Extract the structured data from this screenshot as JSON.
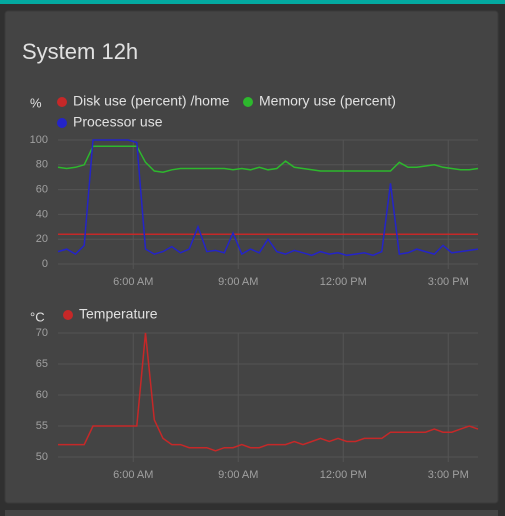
{
  "card": {
    "title": "System 12h"
  },
  "chart_data": [
    {
      "type": "line",
      "y_label": "%",
      "x": [
        3.85,
        4.1,
        4.35,
        4.6,
        4.85,
        5.1,
        5.35,
        5.6,
        5.85,
        6.1,
        6.35,
        6.6,
        6.85,
        7.1,
        7.35,
        7.6,
        7.85,
        8.1,
        8.35,
        8.6,
        8.85,
        9.1,
        9.35,
        9.6,
        9.85,
        10.1,
        10.35,
        10.6,
        10.85,
        11.1,
        11.35,
        11.6,
        11.85,
        12.1,
        12.35,
        12.6,
        12.85,
        13.1,
        13.35,
        13.6,
        13.85,
        14.1,
        14.35,
        14.6,
        14.85,
        15.1,
        15.35,
        15.6,
        15.85
      ],
      "xlim": [
        3.85,
        15.85
      ],
      "xticks": [
        {
          "value": 6,
          "label": "6:00 AM"
        },
        {
          "value": 9,
          "label": "9:00 AM"
        },
        {
          "value": 12,
          "label": "12:00 PM"
        },
        {
          "value": 15,
          "label": "3:00 PM"
        }
      ],
      "ylim": [
        0,
        100
      ],
      "yticks": [
        0,
        20,
        40,
        60,
        80,
        100
      ],
      "grid": true,
      "series": [
        {
          "name": "Disk use (percent) /home",
          "color": "#c62828",
          "values": [
            24,
            24,
            24,
            24,
            24,
            24,
            24,
            24,
            24,
            24,
            24,
            24,
            24,
            24,
            24,
            24,
            24,
            24,
            24,
            24,
            24,
            24,
            24,
            24,
            24,
            24,
            24,
            24,
            24,
            24,
            24,
            24,
            24,
            24,
            24,
            24,
            24,
            24,
            24,
            24,
            24,
            24,
            24,
            24,
            24,
            24,
            24,
            24,
            24
          ]
        },
        {
          "name": "Memory use (percent)",
          "color": "#2db82d",
          "values": [
            78,
            77,
            78,
            80,
            95,
            95,
            95,
            95,
            95,
            95,
            82,
            75,
            74,
            76,
            77,
            77,
            77,
            77,
            77,
            77,
            76,
            77,
            76,
            78,
            76,
            77,
            83,
            78,
            77,
            76,
            75,
            75,
            75,
            75,
            75,
            75,
            75,
            75,
            75,
            82,
            78,
            78,
            79,
            80,
            78,
            77,
            76,
            76,
            77
          ]
        },
        {
          "name": "Processor use",
          "color": "#2424c8",
          "values": [
            10,
            12,
            8,
            15,
            100,
            100,
            100,
            100,
            100,
            98,
            12,
            8,
            10,
            14,
            9,
            12,
            30,
            10,
            11,
            9,
            25,
            8,
            12,
            9,
            20,
            10,
            8,
            11,
            9,
            7,
            10,
            8,
            9,
            7,
            8,
            9,
            7,
            10,
            65,
            8,
            9,
            12,
            10,
            8,
            15,
            9,
            10,
            11,
            12
          ]
        }
      ]
    },
    {
      "type": "line",
      "y_label": "°C",
      "x": [
        3.85,
        4.1,
        4.35,
        4.6,
        4.85,
        5.1,
        5.35,
        5.6,
        5.85,
        6.1,
        6.35,
        6.6,
        6.85,
        7.1,
        7.35,
        7.6,
        7.85,
        8.1,
        8.35,
        8.6,
        8.85,
        9.1,
        9.35,
        9.6,
        9.85,
        10.1,
        10.35,
        10.6,
        10.85,
        11.1,
        11.35,
        11.6,
        11.85,
        12.1,
        12.35,
        12.6,
        12.85,
        13.1,
        13.35,
        13.6,
        13.85,
        14.1,
        14.35,
        14.6,
        14.85,
        15.1,
        15.35,
        15.6,
        15.85
      ],
      "xlim": [
        3.85,
        15.85
      ],
      "xticks": [
        {
          "value": 6,
          "label": "6:00 AM"
        },
        {
          "value": 9,
          "label": "9:00 AM"
        },
        {
          "value": 12,
          "label": "12:00 PM"
        },
        {
          "value": 15,
          "label": "3:00 PM"
        }
      ],
      "ylim": [
        50,
        70
      ],
      "yticks": [
        50,
        55,
        60,
        65,
        70
      ],
      "grid": true,
      "series": [
        {
          "name": "Temperature",
          "color": "#c62828",
          "values": [
            52,
            52,
            52,
            52,
            55,
            55,
            55,
            55,
            55,
            55,
            70,
            56,
            53,
            52,
            52,
            51.5,
            51.5,
            51.5,
            51,
            51.5,
            51.5,
            52,
            51.5,
            51.5,
            52,
            52,
            52,
            52.5,
            52,
            52.5,
            53,
            52.5,
            53,
            52.5,
            52.5,
            53,
            53,
            53,
            54,
            54,
            54,
            54,
            54,
            54.5,
            54,
            54,
            54.5,
            55,
            54.5
          ]
        }
      ]
    }
  ]
}
